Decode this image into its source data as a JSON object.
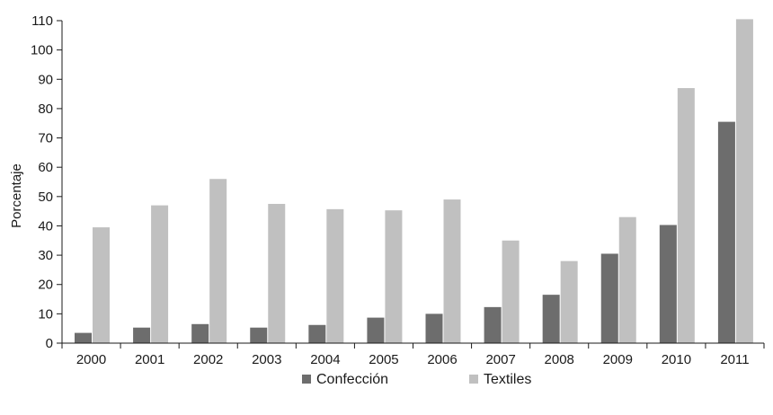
{
  "chart_data": {
    "type": "bar",
    "title": "",
    "xlabel": "",
    "ylabel": "Porcentaje",
    "ylim": [
      0,
      110
    ],
    "yticks": [
      0,
      10,
      20,
      30,
      40,
      50,
      60,
      70,
      80,
      90,
      100,
      110
    ],
    "grid": false,
    "legend_position": "bottom",
    "categories": [
      "2000",
      "2001",
      "2002",
      "2003",
      "2004",
      "2005",
      "2006",
      "2007",
      "2008",
      "2009",
      "2010",
      "2011"
    ],
    "series": [
      {
        "name": "Confección",
        "color": "#6d6d6d",
        "values": [
          3.5,
          5.3,
          6.5,
          5.3,
          6.2,
          8.7,
          10.0,
          12.3,
          16.5,
          30.5,
          40.3,
          75.5
        ]
      },
      {
        "name": "Textiles",
        "color": "#c0c0c0",
        "values": [
          39.5,
          47.0,
          56.0,
          47.5,
          45.7,
          45.3,
          49.0,
          35.0,
          28.0,
          43.0,
          87.0,
          110.5
        ]
      }
    ]
  }
}
